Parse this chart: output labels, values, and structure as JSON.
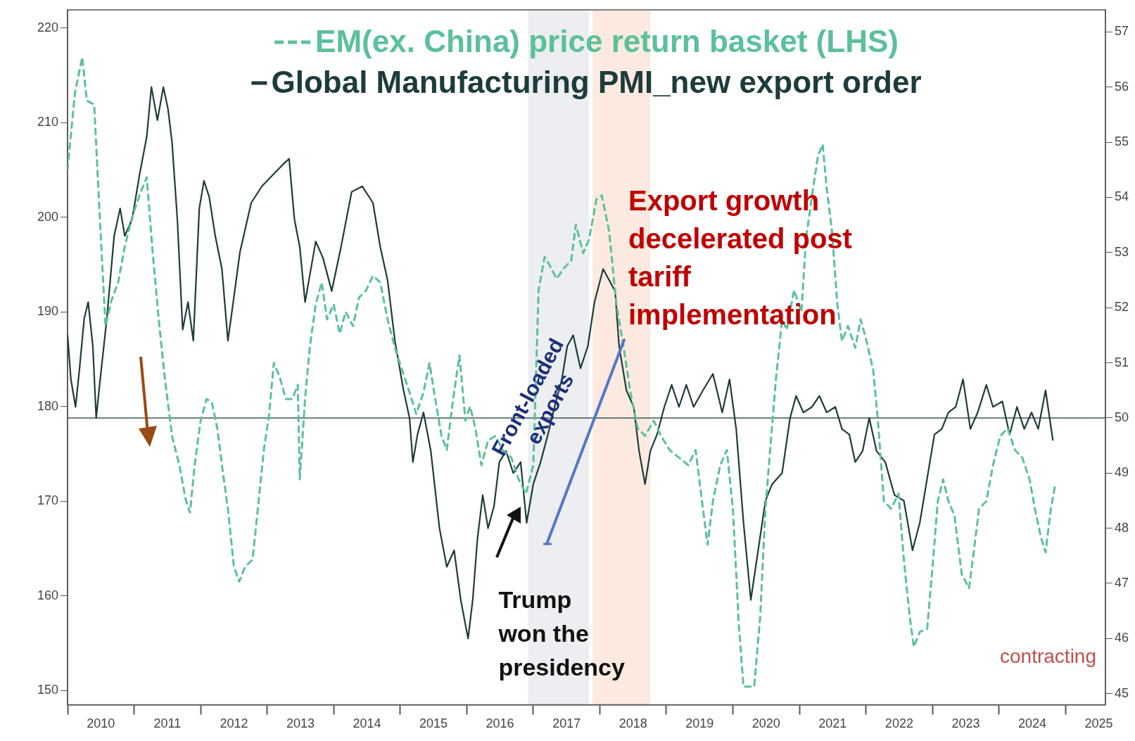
{
  "chart_data": {
    "type": "line",
    "legend": "top",
    "xlim": [
      2010,
      2025.6
    ],
    "xticks": [
      {
        "value": 2010,
        "label": null
      },
      {
        "value": 2010.5,
        "label": "2010"
      },
      {
        "value": 2011,
        "label": null
      },
      {
        "value": 2011.5,
        "label": "2011"
      },
      {
        "value": 2012,
        "label": null
      },
      {
        "value": 2012.5,
        "label": "2012"
      },
      {
        "value": 2013,
        "label": null
      },
      {
        "value": 2013.5,
        "label": "2013"
      },
      {
        "value": 2014,
        "label": null
      },
      {
        "value": 2014.5,
        "label": "2014"
      },
      {
        "value": 2015,
        "label": null
      },
      {
        "value": 2015.5,
        "label": "2015"
      },
      {
        "value": 2016,
        "label": null
      },
      {
        "value": 2016.5,
        "label": "2016"
      },
      {
        "value": 2017,
        "label": null
      },
      {
        "value": 2017.5,
        "label": "2017"
      },
      {
        "value": 2018,
        "label": null
      },
      {
        "value": 2018.5,
        "label": "2018"
      },
      {
        "value": 2019,
        "label": null
      },
      {
        "value": 2019.5,
        "label": "2019"
      },
      {
        "value": 2020,
        "label": null
      },
      {
        "value": 2020.5,
        "label": "2020"
      },
      {
        "value": 2021,
        "label": null
      },
      {
        "value": 2021.5,
        "label": "2021"
      },
      {
        "value": 2022,
        "label": null
      },
      {
        "value": 2022.5,
        "label": "2022"
      },
      {
        "value": 2023,
        "label": null
      },
      {
        "value": 2023.5,
        "label": "2023"
      },
      {
        "value": 2024,
        "label": null
      },
      {
        "value": 2024.5,
        "label": "2024"
      },
      {
        "value": 2025,
        "label": null
      },
      {
        "value": 2025.5,
        "label": "2025"
      }
    ],
    "ylim": [
      148.5,
      221.9
    ],
    "yticks": [
      150,
      160,
      170,
      180,
      190,
      200,
      210,
      220
    ],
    "y2lim": [
      44.8,
      57.4
    ],
    "y2ticks": [
      45,
      46,
      47,
      48,
      49,
      50,
      51,
      52,
      53,
      54,
      55,
      56,
      57
    ],
    "series": [
      {
        "name": "EM(ex. China) price return basket (LHS)",
        "color": "#5cc09a",
        "axis": "y",
        "line_style": "dashed",
        "x": [
          2010.0,
          2010.11,
          2010.22,
          2010.29,
          2010.4,
          2010.49,
          2010.57,
          2010.66,
          2010.76,
          2010.86,
          2010.97,
          2011.08,
          2011.19,
          2011.28,
          2011.37,
          2011.46,
          2011.57,
          2011.68,
          2011.78,
          2011.84,
          2011.91,
          2012.0,
          2012.09,
          2012.17,
          2012.25,
          2012.32,
          2012.41,
          2012.5,
          2012.58,
          2012.67,
          2012.78,
          2012.86,
          2012.95,
          2013.03,
          2013.1,
          2013.19,
          2013.28,
          2013.38,
          2013.46,
          2013.49,
          2013.57,
          2013.64,
          2013.73,
          2013.82,
          2013.9,
          2014.0,
          2014.09,
          2014.18,
          2014.29,
          2014.38,
          2014.49,
          2014.59,
          2014.7,
          2014.81,
          2014.92,
          2015.03,
          2015.14,
          2015.24,
          2015.35,
          2015.44,
          2015.51,
          2015.62,
          2015.7,
          2015.78,
          2015.89,
          2015.98,
          2016.05,
          2016.13,
          2016.22,
          2016.32,
          2016.43,
          2016.54,
          2016.67,
          2016.78,
          2016.89,
          2017.0,
          2017.08,
          2017.17,
          2017.24,
          2017.35,
          2017.46,
          2017.57,
          2017.64,
          2017.75,
          2017.84,
          2017.95,
          2018.03,
          2018.14,
          2018.25,
          2018.36,
          2018.46,
          2018.57,
          2018.68,
          2018.81,
          2018.92,
          2019.05,
          2019.19,
          2019.33,
          2019.44,
          2019.55,
          2019.62,
          2019.7,
          2019.81,
          2019.91,
          2020.0,
          2020.09,
          2020.16,
          2020.32,
          2020.41,
          2020.49,
          2020.56,
          2020.65,
          2020.74,
          2020.81,
          2020.92,
          2021.03,
          2021.1,
          2021.19,
          2021.28,
          2021.35,
          2021.41,
          2021.49,
          2021.57,
          2021.64,
          2021.73,
          2021.84,
          2021.92,
          2022.01,
          2022.11,
          2022.18,
          2022.27,
          2022.38,
          2022.49,
          2022.57,
          2022.66,
          2022.72,
          2022.81,
          2022.92,
          2023.01,
          2023.08,
          2023.16,
          2023.24,
          2023.33,
          2023.44,
          2023.55,
          2023.62,
          2023.7,
          2023.81,
          2023.91,
          2024.02,
          2024.13,
          2024.24,
          2024.35,
          2024.46,
          2024.54,
          2024.63,
          2024.7,
          2024.78,
          2024.84
        ],
        "values": [
          205.0,
          213.1,
          216.9,
          212.3,
          211.9,
          199.2,
          188.5,
          191.2,
          193.1,
          196.9,
          200.0,
          202.3,
          204.2,
          196.2,
          189.2,
          183.1,
          176.9,
          173.8,
          170.0,
          168.8,
          173.8,
          178.5,
          180.8,
          180.4,
          177.7,
          173.8,
          169.2,
          163.1,
          161.5,
          163.1,
          163.8,
          169.2,
          175.4,
          179.2,
          184.6,
          183.1,
          180.8,
          180.8,
          182.3,
          172.3,
          180.8,
          186.2,
          190.8,
          193.1,
          189.2,
          190.8,
          187.7,
          190.0,
          188.5,
          191.5,
          192.3,
          193.8,
          193.1,
          189.2,
          186.2,
          183.8,
          181.5,
          179.2,
          181.5,
          184.6,
          181.5,
          176.9,
          175.4,
          180.0,
          185.4,
          178.5,
          180.0,
          177.7,
          173.8,
          176.4,
          176.9,
          175.4,
          174.6,
          172.3,
          170.8,
          173.8,
          192.3,
          195.8,
          195.0,
          193.5,
          194.6,
          195.4,
          199.2,
          196.2,
          197.7,
          201.9,
          202.3,
          198.5,
          190.8,
          186.2,
          181.5,
          177.7,
          176.9,
          178.5,
          176.9,
          175.4,
          174.6,
          173.8,
          175.4,
          169.2,
          165.4,
          170.0,
          173.8,
          175.4,
          169.2,
          156.9,
          150.4,
          150.4,
          157.7,
          169.2,
          175.4,
          183.1,
          189.2,
          188.1,
          192.3,
          190.0,
          197.7,
          202.3,
          206.5,
          207.7,
          203.1,
          198.5,
          190.8,
          186.9,
          188.5,
          186.2,
          189.2,
          186.9,
          183.8,
          178.5,
          170.0,
          169.2,
          170.8,
          163.8,
          157.7,
          154.6,
          156.2,
          156.5,
          163.8,
          170.0,
          172.3,
          170.0,
          168.5,
          162.3,
          160.8,
          164.6,
          169.2,
          170.0,
          173.8,
          176.9,
          177.7,
          175.4,
          174.6,
          172.3,
          169.2,
          166.2,
          164.6,
          169.2,
          171.5
        ]
      },
      {
        "name": "Global Manufacturing PMI_new export order",
        "color": "#1e3b3b",
        "axis": "y2",
        "line_style": "solid",
        "x": [
          2010.0,
          2010.05,
          2010.12,
          2010.18,
          2010.25,
          2010.31,
          2010.38,
          2010.43,
          2010.49,
          2010.59,
          2010.7,
          2010.79,
          2010.86,
          2010.97,
          2011.08,
          2011.19,
          2011.26,
          2011.35,
          2011.44,
          2011.51,
          2011.57,
          2011.65,
          2011.73,
          2011.81,
          2011.89,
          2011.98,
          2012.05,
          2012.13,
          2012.22,
          2012.32,
          2012.41,
          2012.49,
          2012.59,
          2012.76,
          2012.92,
          2013.08,
          2013.24,
          2013.33,
          2013.41,
          2013.49,
          2013.57,
          2013.73,
          2013.84,
          2013.97,
          2014.11,
          2014.27,
          2014.43,
          2014.59,
          2014.7,
          2014.81,
          2014.92,
          2015.05,
          2015.14,
          2015.19,
          2015.26,
          2015.35,
          2015.46,
          2015.59,
          2015.7,
          2015.81,
          2015.91,
          2016.02,
          2016.09,
          2016.16,
          2016.24,
          2016.32,
          2016.41,
          2016.49,
          2016.59,
          2016.7,
          2016.81,
          2016.9,
          2017.0,
          2017.11,
          2017.22,
          2017.32,
          2017.43,
          2017.51,
          2017.6,
          2017.71,
          2017.82,
          2017.92,
          2018.05,
          2018.14,
          2018.23,
          2018.29,
          2018.4,
          2018.51,
          2018.59,
          2018.68,
          2018.76,
          2018.86,
          2018.97,
          2019.08,
          2019.19,
          2019.3,
          2019.41,
          2019.55,
          2019.7,
          2019.84,
          2019.95,
          2020.05,
          2020.16,
          2020.27,
          2020.38,
          2020.49,
          2020.59,
          2020.74,
          2020.86,
          2020.95,
          2021.06,
          2021.19,
          2021.3,
          2021.41,
          2021.54,
          2021.64,
          2021.75,
          2021.84,
          2021.95,
          2022.05,
          2022.16,
          2022.29,
          2022.43,
          2022.57,
          2022.7,
          2022.81,
          2022.92,
          2023.03,
          2023.14,
          2023.24,
          2023.35,
          2023.46,
          2023.57,
          2023.68,
          2023.81,
          2023.91,
          2024.05,
          2024.16,
          2024.27,
          2024.38,
          2024.49,
          2024.59,
          2024.7,
          2024.81
        ],
        "values": [
          51.5,
          50.7,
          50.2,
          50.9,
          51.8,
          52.1,
          51.3,
          50.0,
          50.7,
          51.8,
          53.3,
          53.8,
          53.3,
          53.6,
          54.4,
          55.1,
          56.0,
          55.4,
          56.0,
          55.6,
          55.0,
          53.6,
          51.6,
          52.1,
          51.4,
          53.8,
          54.3,
          54.0,
          53.3,
          52.7,
          51.4,
          52.1,
          53.0,
          53.9,
          54.2,
          54.4,
          54.6,
          54.7,
          53.6,
          53.1,
          52.1,
          53.2,
          52.9,
          52.3,
          53.1,
          54.1,
          54.2,
          53.9,
          53.1,
          52.5,
          51.4,
          50.5,
          50.0,
          49.2,
          49.7,
          50.1,
          49.4,
          48.0,
          47.3,
          47.6,
          46.7,
          46.0,
          46.7,
          47.8,
          48.6,
          48.0,
          48.4,
          49.2,
          49.4,
          49.0,
          49.2,
          48.1,
          48.8,
          49.2,
          49.7,
          50.2,
          50.7,
          51.3,
          51.5,
          50.9,
          51.3,
          52.1,
          52.7,
          52.5,
          52.3,
          51.3,
          50.5,
          50.2,
          49.4,
          48.8,
          49.4,
          49.7,
          50.2,
          50.6,
          50.2,
          50.6,
          50.2,
          50.5,
          50.8,
          50.1,
          50.7,
          49.8,
          48.1,
          46.7,
          47.6,
          48.5,
          48.8,
          49.0,
          50.0,
          50.4,
          50.1,
          50.2,
          50.4,
          50.1,
          50.2,
          49.8,
          49.7,
          49.2,
          49.4,
          50.0,
          49.4,
          49.2,
          48.6,
          48.5,
          47.6,
          48.1,
          48.9,
          49.7,
          49.8,
          50.1,
          50.2,
          50.7,
          49.8,
          50.1,
          50.6,
          50.2,
          50.3,
          49.7,
          50.2,
          49.8,
          50.1,
          49.8,
          50.5,
          49.6
        ]
      }
    ],
    "ref_lines": [
      {
        "axis": "y2",
        "value": 50,
        "color": "#3d5656"
      }
    ],
    "bands": [
      {
        "axis": "x",
        "from": 2016.92,
        "to": 2017.84,
        "color": "#e6e8ec"
      },
      {
        "axis": "x",
        "from": 2017.89,
        "to": 2018.76,
        "color": "#fbe3d6"
      }
    ],
    "annotations": [
      "Export growth decelerated post tariff implementation",
      "Front-loaded exports",
      {
        "text": "Trump won the presidency",
        "x": 2016.9,
        "y": 167.7
      },
      "contracting"
    ]
  }
}
